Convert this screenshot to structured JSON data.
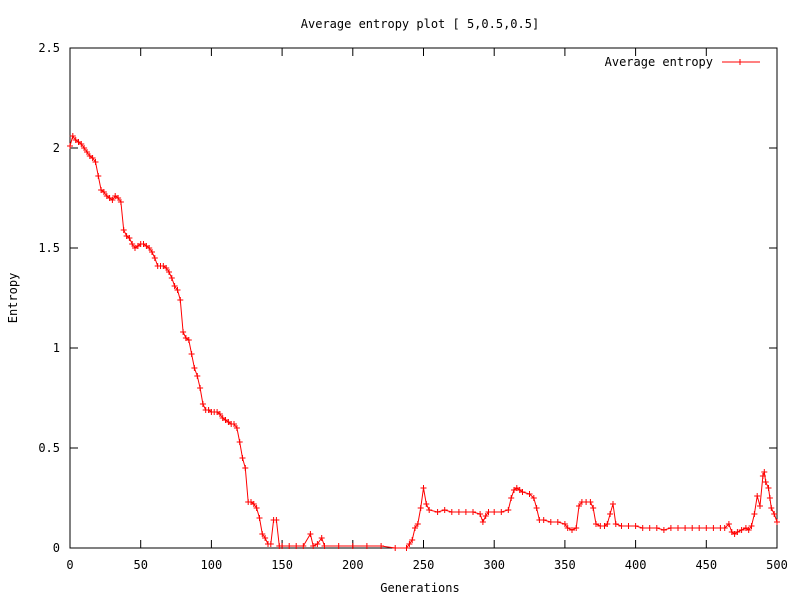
{
  "chart_data": {
    "type": "line",
    "title": "Average entropy plot [ 5,0.5,0.5]",
    "xlabel": "Generations",
    "ylabel": "Entropy",
    "xlim": [
      0,
      500
    ],
    "ylim": [
      0,
      2.5
    ],
    "xticks": [
      0,
      50,
      100,
      150,
      200,
      250,
      300,
      350,
      400,
      450,
      500
    ],
    "yticks": [
      0,
      0.5,
      1,
      1.5,
      2,
      2.5
    ],
    "xtick_labels": [
      "0",
      "50",
      "100",
      "150",
      "200",
      "250",
      "300",
      "350",
      "400",
      "450",
      "500"
    ],
    "ytick_labels": [
      "0",
      "0.5",
      "1",
      "1.5",
      "2",
      "2.5"
    ],
    "grid": false,
    "legend_position": "top-right",
    "series_color": "#ff0000",
    "series": [
      {
        "name": "Average entropy",
        "marker": "plus",
        "points": [
          [
            0,
            2.01
          ],
          [
            2,
            2.06
          ],
          [
            4,
            2.04
          ],
          [
            6,
            2.03
          ],
          [
            8,
            2.02
          ],
          [
            10,
            2.0
          ],
          [
            12,
            1.98
          ],
          [
            14,
            1.96
          ],
          [
            16,
            1.95
          ],
          [
            18,
            1.93
          ],
          [
            20,
            1.86
          ],
          [
            22,
            1.79
          ],
          [
            24,
            1.78
          ],
          [
            26,
            1.76
          ],
          [
            28,
            1.75
          ],
          [
            30,
            1.74
          ],
          [
            32,
            1.76
          ],
          [
            34,
            1.75
          ],
          [
            36,
            1.73
          ],
          [
            38,
            1.59
          ],
          [
            40,
            1.56
          ],
          [
            42,
            1.55
          ],
          [
            44,
            1.52
          ],
          [
            46,
            1.5
          ],
          [
            48,
            1.51
          ],
          [
            50,
            1.52
          ],
          [
            52,
            1.52
          ],
          [
            54,
            1.51
          ],
          [
            56,
            1.5
          ],
          [
            58,
            1.48
          ],
          [
            60,
            1.45
          ],
          [
            62,
            1.41
          ],
          [
            64,
            1.41
          ],
          [
            66,
            1.41
          ],
          [
            68,
            1.4
          ],
          [
            70,
            1.38
          ],
          [
            72,
            1.35
          ],
          [
            74,
            1.31
          ],
          [
            76,
            1.29
          ],
          [
            78,
            1.24
          ],
          [
            80,
            1.08
          ],
          [
            82,
            1.05
          ],
          [
            84,
            1.04
          ],
          [
            86,
            0.97
          ],
          [
            88,
            0.9
          ],
          [
            90,
            0.86
          ],
          [
            92,
            0.8
          ],
          [
            94,
            0.72
          ],
          [
            96,
            0.69
          ],
          [
            98,
            0.69
          ],
          [
            100,
            0.68
          ],
          [
            102,
            0.68
          ],
          [
            104,
            0.68
          ],
          [
            106,
            0.67
          ],
          [
            108,
            0.65
          ],
          [
            110,
            0.64
          ],
          [
            112,
            0.63
          ],
          [
            114,
            0.62
          ],
          [
            116,
            0.62
          ],
          [
            118,
            0.6
          ],
          [
            120,
            0.53
          ],
          [
            122,
            0.45
          ],
          [
            124,
            0.4
          ],
          [
            126,
            0.23
          ],
          [
            128,
            0.23
          ],
          [
            130,
            0.22
          ],
          [
            132,
            0.2
          ],
          [
            134,
            0.15
          ],
          [
            136,
            0.07
          ],
          [
            138,
            0.05
          ],
          [
            140,
            0.02
          ],
          [
            142,
            0.02
          ],
          [
            144,
            0.14
          ],
          [
            146,
            0.14
          ],
          [
            148,
            0.01
          ],
          [
            150,
            0.01
          ],
          [
            155,
            0.01
          ],
          [
            160,
            0.01
          ],
          [
            165,
            0.01
          ],
          [
            170,
            0.07
          ],
          [
            172,
            0.01
          ],
          [
            175,
            0.02
          ],
          [
            178,
            0.05
          ],
          [
            180,
            0.01
          ],
          [
            190,
            0.01
          ],
          [
            200,
            0.01
          ],
          [
            210,
            0.01
          ],
          [
            220,
            0.01
          ],
          [
            230,
            0.0
          ],
          [
            238,
            0.0
          ],
          [
            240,
            0.02
          ],
          [
            242,
            0.04
          ],
          [
            244,
            0.1
          ],
          [
            246,
            0.12
          ],
          [
            248,
            0.2
          ],
          [
            250,
            0.3
          ],
          [
            252,
            0.22
          ],
          [
            254,
            0.19
          ],
          [
            260,
            0.18
          ],
          [
            265,
            0.19
          ],
          [
            270,
            0.18
          ],
          [
            275,
            0.18
          ],
          [
            280,
            0.18
          ],
          [
            285,
            0.18
          ],
          [
            290,
            0.17
          ],
          [
            292,
            0.13
          ],
          [
            294,
            0.16
          ],
          [
            296,
            0.18
          ],
          [
            300,
            0.18
          ],
          [
            305,
            0.18
          ],
          [
            310,
            0.19
          ],
          [
            312,
            0.25
          ],
          [
            314,
            0.29
          ],
          [
            316,
            0.3
          ],
          [
            318,
            0.29
          ],
          [
            320,
            0.28
          ],
          [
            325,
            0.27
          ],
          [
            328,
            0.25
          ],
          [
            330,
            0.2
          ],
          [
            332,
            0.14
          ],
          [
            335,
            0.14
          ],
          [
            340,
            0.13
          ],
          [
            345,
            0.13
          ],
          [
            350,
            0.12
          ],
          [
            352,
            0.1
          ],
          [
            355,
            0.09
          ],
          [
            358,
            0.1
          ],
          [
            360,
            0.21
          ],
          [
            362,
            0.23
          ],
          [
            365,
            0.23
          ],
          [
            368,
            0.23
          ],
          [
            370,
            0.2
          ],
          [
            372,
            0.12
          ],
          [
            375,
            0.11
          ],
          [
            378,
            0.11
          ],
          [
            380,
            0.12
          ],
          [
            382,
            0.17
          ],
          [
            384,
            0.22
          ],
          [
            386,
            0.12
          ],
          [
            390,
            0.11
          ],
          [
            395,
            0.11
          ],
          [
            400,
            0.11
          ],
          [
            405,
            0.1
          ],
          [
            410,
            0.1
          ],
          [
            415,
            0.1
          ],
          [
            420,
            0.09
          ],
          [
            425,
            0.1
          ],
          [
            430,
            0.1
          ],
          [
            435,
            0.1
          ],
          [
            440,
            0.1
          ],
          [
            445,
            0.1
          ],
          [
            450,
            0.1
          ],
          [
            455,
            0.1
          ],
          [
            460,
            0.1
          ],
          [
            463,
            0.1
          ],
          [
            466,
            0.12
          ],
          [
            468,
            0.08
          ],
          [
            470,
            0.07
          ],
          [
            472,
            0.08
          ],
          [
            475,
            0.09
          ],
          [
            478,
            0.1
          ],
          [
            480,
            0.09
          ],
          [
            482,
            0.11
          ],
          [
            484,
            0.17
          ],
          [
            486,
            0.26
          ],
          [
            488,
            0.21
          ],
          [
            490,
            0.36
          ],
          [
            491,
            0.38
          ],
          [
            492,
            0.33
          ],
          [
            494,
            0.3
          ],
          [
            495,
            0.25
          ],
          [
            496,
            0.2
          ],
          [
            498,
            0.17
          ],
          [
            500,
            0.13
          ]
        ]
      }
    ]
  }
}
